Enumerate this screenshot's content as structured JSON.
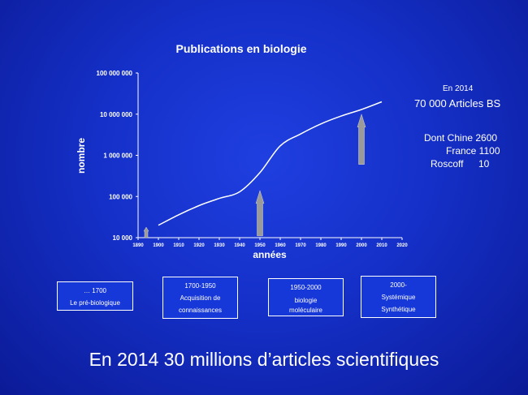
{
  "chart_data": {
    "type": "line",
    "title": "Publications en biologie",
    "xlabel": "années",
    "ylabel": "nombre",
    "x_ticks": [
      "1890",
      "1900",
      "1910",
      "1920",
      "1930",
      "1940",
      "1950",
      "1960",
      "1970",
      "1980",
      "1990",
      "2000",
      "2010",
      "2020"
    ],
    "y_ticks": [
      "10 000",
      "100 000",
      "1 000 000",
      "10 000 000",
      "100 000 000"
    ],
    "xlim": [
      1890,
      2020
    ],
    "ylim": [
      10000,
      100000000
    ],
    "y_scale": "log",
    "x": [
      1900,
      1910,
      1920,
      1930,
      1940,
      1950,
      1960,
      1970,
      1980,
      1990,
      2000,
      2010
    ],
    "y": [
      20000,
      36000,
      60000,
      90000,
      130000,
      380000,
      1700000,
      3300000,
      5800000,
      9000000,
      13000000,
      20000000
    ],
    "arrows": [
      {
        "x": 1894,
        "y_from": 10000,
        "y_to": 18000
      },
      {
        "x": 1950,
        "y_from": 11000,
        "y_to": 140000
      },
      {
        "x": 2000,
        "y_from": 600000,
        "y_to": 10000000
      }
    ],
    "colors": {
      "line": "#ffffff",
      "arrow": "#9a9a9a",
      "axis": "#ffffff"
    }
  },
  "notes": {
    "year": "En 2014",
    "articles": "70 000 Articles BS",
    "dont_chine": "Dont Chine 2600",
    "france": "France 1100",
    "roscoff": "Roscoff",
    "roscoff_value": "10"
  },
  "periods": [
    {
      "line1": "… 1700",
      "line2": "Le pré-biologique",
      "line3": ""
    },
    {
      "line1": "1700-1950",
      "line2": "Acquisition de",
      "line3": "connaissances"
    },
    {
      "line1": "1950-2000",
      "line2": "biologie",
      "line3": "moléculaire"
    },
    {
      "line1": "2000-",
      "line2": "Systémique",
      "line3": "Synthétique"
    }
  ],
  "footer": "En 2014 30 millions d’articles scientifiques"
}
